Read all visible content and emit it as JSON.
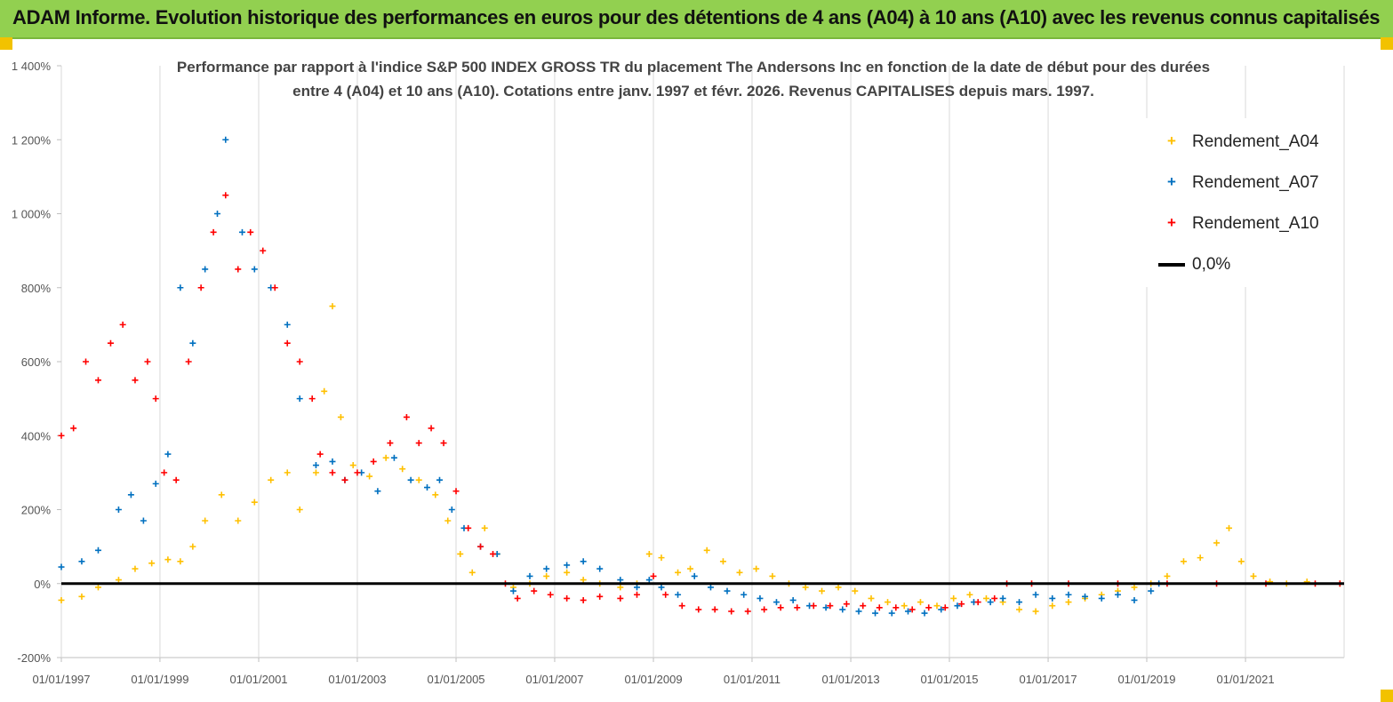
{
  "header": {
    "title": "ADAM Informe. Evolution historique des performances en euros pour des détentions de 4 ans (A04) à 10 ans (A10) avec les revenus connus capitalisés"
  },
  "colors": {
    "header_bg": "#92d050",
    "a04": "#ffc000",
    "a07": "#0070c0",
    "a10": "#ff0000",
    "zero": "#000000"
  },
  "chart_data": {
    "type": "scatter",
    "title_line1": "Performance par rapport à l'indice S&P 500 INDEX GROSS TR  du placement The Andersons Inc en fonction de la date de début pour des durées",
    "title_line2": "entre 4 (A04) et 10 ans (A10). Cotations entre janv. 1997 et févr. 2026. Revenus CAPITALISES depuis mars. 1997.",
    "xlabel": "",
    "ylabel": "",
    "ylim": [
      -200,
      1400
    ],
    "y_ticks": [
      "-200%",
      "0%",
      "200%",
      "400%",
      "600%",
      "800%",
      "1 000%",
      "1 200%",
      "1 400%"
    ],
    "x_ticks": [
      "01/01/1997",
      "01/01/1999",
      "01/01/2001",
      "01/01/2003",
      "01/01/2005",
      "01/01/2007",
      "01/01/2009",
      "01/01/2011",
      "01/01/2013",
      "01/01/2015",
      "01/01/2017",
      "01/01/2019",
      "01/01/2021"
    ],
    "xlim": [
      "1997-01-01",
      "2023-01-01"
    ],
    "grid": "vertical",
    "legend_position": "top-right",
    "series": [
      {
        "name": "Rendement_A04",
        "color": "#ffc000",
        "marker": "+",
        "points": [
          [
            "1997-01-01",
            -45
          ],
          [
            "1997-06-01",
            -35
          ],
          [
            "1997-10-01",
            -10
          ],
          [
            "1998-03-01",
            10
          ],
          [
            "1998-07-01",
            40
          ],
          [
            "1998-11-01",
            55
          ],
          [
            "1999-03-01",
            65
          ],
          [
            "1999-06-01",
            60
          ],
          [
            "1999-09-01",
            100
          ],
          [
            "1999-12-01",
            170
          ],
          [
            "2000-04-01",
            240
          ],
          [
            "2000-08-01",
            170
          ],
          [
            "2000-12-01",
            220
          ],
          [
            "2001-04-01",
            280
          ],
          [
            "2001-08-01",
            300
          ],
          [
            "2001-11-01",
            200
          ],
          [
            "2002-03-01",
            300
          ],
          [
            "2002-05-01",
            520
          ],
          [
            "2002-07-01",
            750
          ],
          [
            "2002-09-01",
            450
          ],
          [
            "2002-12-01",
            320
          ],
          [
            "2003-04-01",
            290
          ],
          [
            "2003-08-01",
            340
          ],
          [
            "2003-12-01",
            310
          ],
          [
            "2004-04-01",
            280
          ],
          [
            "2004-08-01",
            240
          ],
          [
            "2004-11-01",
            170
          ],
          [
            "2005-02-01",
            80
          ],
          [
            "2005-05-01",
            30
          ],
          [
            "2005-08-01",
            150
          ],
          [
            "2005-11-01",
            80
          ],
          [
            "2006-03-01",
            -10
          ],
          [
            "2006-07-01",
            0
          ],
          [
            "2006-11-01",
            20
          ],
          [
            "2007-04-01",
            30
          ],
          [
            "2007-08-01",
            10
          ],
          [
            "2007-12-01",
            0
          ],
          [
            "2008-05-01",
            -10
          ],
          [
            "2008-09-01",
            0
          ],
          [
            "2008-12-01",
            80
          ],
          [
            "2009-03-01",
            70
          ],
          [
            "2009-07-01",
            30
          ],
          [
            "2009-10-01",
            40
          ],
          [
            "2010-02-01",
            90
          ],
          [
            "2010-06-01",
            60
          ],
          [
            "2010-10-01",
            30
          ],
          [
            "2011-02-01",
            40
          ],
          [
            "2011-06-01",
            20
          ],
          [
            "2011-10-01",
            0
          ],
          [
            "2012-02-01",
            -10
          ],
          [
            "2012-06-01",
            -20
          ],
          [
            "2012-10-01",
            -10
          ],
          [
            "2013-02-01",
            -20
          ],
          [
            "2013-06-01",
            -40
          ],
          [
            "2013-10-01",
            -50
          ],
          [
            "2014-02-01",
            -60
          ],
          [
            "2014-06-01",
            -50
          ],
          [
            "2014-10-01",
            -60
          ],
          [
            "2015-02-01",
            -40
          ],
          [
            "2015-06-01",
            -30
          ],
          [
            "2015-10-01",
            -40
          ],
          [
            "2016-02-01",
            -50
          ],
          [
            "2016-06-01",
            -70
          ],
          [
            "2016-10-01",
            -75
          ],
          [
            "2017-02-01",
            -60
          ],
          [
            "2017-06-01",
            -50
          ],
          [
            "2017-10-01",
            -40
          ],
          [
            "2018-02-01",
            -30
          ],
          [
            "2018-06-01",
            -20
          ],
          [
            "2018-10-01",
            -10
          ],
          [
            "2019-02-01",
            0
          ],
          [
            "2019-06-01",
            20
          ],
          [
            "2019-10-01",
            60
          ],
          [
            "2020-02-01",
            70
          ],
          [
            "2020-06-01",
            110
          ],
          [
            "2020-09-01",
            150
          ],
          [
            "2020-12-01",
            60
          ],
          [
            "2021-03-01",
            20
          ],
          [
            "2021-07-01",
            5
          ],
          [
            "2021-11-01",
            0
          ],
          [
            "2022-04-01",
            5
          ],
          [
            "2022-12-01",
            0
          ]
        ]
      },
      {
        "name": "Rendement_A07",
        "color": "#0070c0",
        "marker": "+",
        "points": [
          [
            "1997-01-01",
            45
          ],
          [
            "1997-06-01",
            60
          ],
          [
            "1997-10-01",
            90
          ],
          [
            "1998-03-01",
            200
          ],
          [
            "1998-06-01",
            240
          ],
          [
            "1998-09-01",
            170
          ],
          [
            "1998-12-01",
            270
          ],
          [
            "1999-03-01",
            350
          ],
          [
            "1999-06-01",
            800
          ],
          [
            "1999-09-01",
            650
          ],
          [
            "1999-12-01",
            850
          ],
          [
            "2000-03-01",
            1000
          ],
          [
            "2000-05-01",
            1200
          ],
          [
            "2000-09-01",
            950
          ],
          [
            "2000-12-01",
            850
          ],
          [
            "2001-04-01",
            800
          ],
          [
            "2001-08-01",
            700
          ],
          [
            "2001-11-01",
            500
          ],
          [
            "2002-03-01",
            320
          ],
          [
            "2002-07-01",
            330
          ],
          [
            "2002-10-01",
            280
          ],
          [
            "2003-02-01",
            300
          ],
          [
            "2003-06-01",
            250
          ],
          [
            "2003-10-01",
            340
          ],
          [
            "2004-02-01",
            280
          ],
          [
            "2004-06-01",
            260
          ],
          [
            "2004-09-01",
            280
          ],
          [
            "2004-12-01",
            200
          ],
          [
            "2005-03-01",
            150
          ],
          [
            "2005-07-01",
            100
          ],
          [
            "2005-11-01",
            80
          ],
          [
            "2006-03-01",
            -20
          ],
          [
            "2006-07-01",
            20
          ],
          [
            "2006-11-01",
            40
          ],
          [
            "2007-04-01",
            50
          ],
          [
            "2007-08-01",
            60
          ],
          [
            "2007-12-01",
            40
          ],
          [
            "2008-05-01",
            10
          ],
          [
            "2008-09-01",
            -10
          ],
          [
            "2008-12-01",
            10
          ],
          [
            "2009-03-01",
            -10
          ],
          [
            "2009-07-01",
            -30
          ],
          [
            "2009-11-01",
            20
          ],
          [
            "2010-03-01",
            -10
          ],
          [
            "2010-07-01",
            -20
          ],
          [
            "2010-11-01",
            -30
          ],
          [
            "2011-03-01",
            -40
          ],
          [
            "2011-07-01",
            -50
          ],
          [
            "2011-11-01",
            -45
          ],
          [
            "2012-03-01",
            -60
          ],
          [
            "2012-07-01",
            -65
          ],
          [
            "2012-11-01",
            -70
          ],
          [
            "2013-03-01",
            -75
          ],
          [
            "2013-07-01",
            -80
          ],
          [
            "2013-11-01",
            -80
          ],
          [
            "2014-03-01",
            -75
          ],
          [
            "2014-07-01",
            -80
          ],
          [
            "2014-11-01",
            -70
          ],
          [
            "2015-03-01",
            -60
          ],
          [
            "2015-07-01",
            -50
          ],
          [
            "2015-11-01",
            -50
          ],
          [
            "2016-02-01",
            -40
          ],
          [
            "2016-06-01",
            -50
          ],
          [
            "2016-10-01",
            -30
          ],
          [
            "2017-02-01",
            -40
          ],
          [
            "2017-06-01",
            -30
          ],
          [
            "2017-10-01",
            -35
          ],
          [
            "2018-02-01",
            -40
          ],
          [
            "2018-06-01",
            -30
          ],
          [
            "2018-10-01",
            -45
          ],
          [
            "2019-02-01",
            -20
          ],
          [
            "2019-04-01",
            0
          ]
        ]
      },
      {
        "name": "Rendement_A10",
        "color": "#ff0000",
        "marker": "+",
        "points": [
          [
            "1997-01-01",
            400
          ],
          [
            "1997-04-01",
            420
          ],
          [
            "1997-07-01",
            600
          ],
          [
            "1997-10-01",
            550
          ],
          [
            "1998-01-01",
            650
          ],
          [
            "1998-04-01",
            700
          ],
          [
            "1998-07-01",
            550
          ],
          [
            "1998-10-01",
            600
          ],
          [
            "1998-12-01",
            500
          ],
          [
            "1999-02-01",
            300
          ],
          [
            "1999-05-01",
            280
          ],
          [
            "1999-08-01",
            600
          ],
          [
            "1999-11-01",
            800
          ],
          [
            "2000-02-01",
            950
          ],
          [
            "2000-05-01",
            1050
          ],
          [
            "2000-08-01",
            850
          ],
          [
            "2000-11-01",
            950
          ],
          [
            "2001-02-01",
            900
          ],
          [
            "2001-05-01",
            800
          ],
          [
            "2001-08-01",
            650
          ],
          [
            "2001-11-01",
            600
          ],
          [
            "2002-02-01",
            500
          ],
          [
            "2002-04-01",
            350
          ],
          [
            "2002-07-01",
            300
          ],
          [
            "2002-10-01",
            280
          ],
          [
            "2003-01-01",
            300
          ],
          [
            "2003-05-01",
            330
          ],
          [
            "2003-09-01",
            380
          ],
          [
            "2004-01-01",
            450
          ],
          [
            "2004-04-01",
            380
          ],
          [
            "2004-07-01",
            420
          ],
          [
            "2004-10-01",
            380
          ],
          [
            "2005-01-01",
            250
          ],
          [
            "2005-04-01",
            150
          ],
          [
            "2005-07-01",
            100
          ],
          [
            "2005-10-01",
            80
          ],
          [
            "2006-01-01",
            0
          ],
          [
            "2006-04-01",
            -40
          ],
          [
            "2006-08-01",
            -20
          ],
          [
            "2006-12-01",
            -30
          ],
          [
            "2007-04-01",
            -40
          ],
          [
            "2007-08-01",
            -45
          ],
          [
            "2007-12-01",
            -35
          ],
          [
            "2008-05-01",
            -40
          ],
          [
            "2008-09-01",
            -30
          ],
          [
            "2009-01-01",
            20
          ],
          [
            "2009-04-01",
            -30
          ],
          [
            "2009-08-01",
            -60
          ],
          [
            "2009-12-01",
            -70
          ],
          [
            "2010-04-01",
            -70
          ],
          [
            "2010-08-01",
            -75
          ],
          [
            "2010-12-01",
            -75
          ],
          [
            "2011-04-01",
            -70
          ],
          [
            "2011-08-01",
            -65
          ],
          [
            "2011-12-01",
            -65
          ],
          [
            "2012-04-01",
            -60
          ],
          [
            "2012-08-01",
            -60
          ],
          [
            "2012-12-01",
            -55
          ],
          [
            "2013-04-01",
            -60
          ],
          [
            "2013-08-01",
            -65
          ],
          [
            "2013-12-01",
            -65
          ],
          [
            "2014-04-01",
            -70
          ],
          [
            "2014-08-01",
            -65
          ],
          [
            "2014-12-01",
            -65
          ],
          [
            "2015-04-01",
            -55
          ],
          [
            "2015-08-01",
            -50
          ],
          [
            "2015-12-01",
            -40
          ],
          [
            "2016-03-01",
            0
          ],
          [
            "2016-09-01",
            0
          ],
          [
            "2017-06-01",
            0
          ],
          [
            "2018-06-01",
            0
          ],
          [
            "2019-06-01",
            0
          ],
          [
            "2020-06-01",
            0
          ],
          [
            "2021-06-01",
            0
          ],
          [
            "2022-06-01",
            0
          ],
          [
            "2022-12-01",
            0
          ]
        ]
      }
    ],
    "reference_line": {
      "name": "0,0%",
      "y": 0,
      "color": "#000000"
    }
  }
}
